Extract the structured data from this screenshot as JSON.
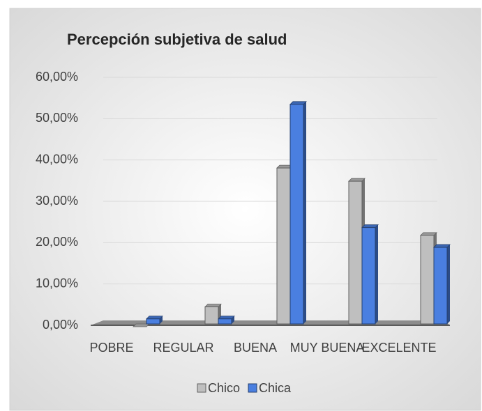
{
  "chart_data": {
    "type": "bar3d",
    "title": "Percepción subjetiva de salud",
    "categories": [
      "POBRE",
      "REGULAR",
      "BUENA",
      "MUY BUENA",
      "EXCELENTE"
    ],
    "series": [
      {
        "name": "Chico",
        "color": "#bfbfbf",
        "values": [
          0,
          4.8,
          38.4,
          35.2,
          22.1
        ]
      },
      {
        "name": "Chica",
        "color": "#4a7fe0",
        "values": [
          1.9,
          1.9,
          53.8,
          24.0,
          19.2
        ]
      }
    ],
    "ylim": [
      0,
      60
    ],
    "yticks": [
      {
        "value": 0,
        "label": "0,00%"
      },
      {
        "value": 10,
        "label": "10,00%"
      },
      {
        "value": 20,
        "label": "20,00%"
      },
      {
        "value": 30,
        "label": "30,00%"
      },
      {
        "value": 40,
        "label": "40,00%"
      },
      {
        "value": 50,
        "label": "50,00%"
      },
      {
        "value": 60,
        "label": "60,00%"
      }
    ],
    "grid": true,
    "legend": "bottom"
  }
}
